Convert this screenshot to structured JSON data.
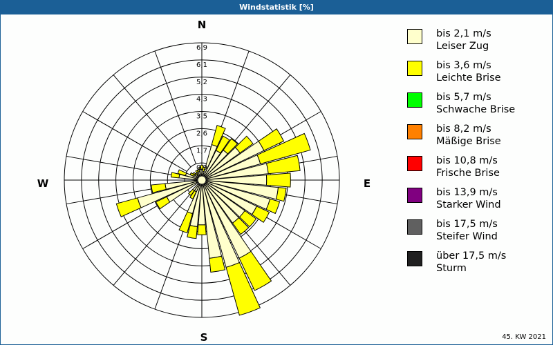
{
  "title": "Windstatistik [%]",
  "footer": "45. KW 2021",
  "directions": {
    "n": "N",
    "e": "E",
    "s": "S",
    "w": "W"
  },
  "legend": [
    {
      "line1": "bis 2,1 m/s",
      "line2": "Leiser Zug",
      "color": "#ffffcc"
    },
    {
      "line1": "bis 3,6 m/s",
      "line2": "Leichte Brise",
      "color": "#ffff00"
    },
    {
      "line1": "bis 5,7 m/s",
      "line2": "Schwache Brise",
      "color": "#00ff00"
    },
    {
      "line1": "bis 8,2 m/s",
      "line2": "Mäßige Brise",
      "color": "#ff8000"
    },
    {
      "line1": "bis 10,8 m/s",
      "line2": "Frische Brise",
      "color": "#ff0000"
    },
    {
      "line1": "bis 13,9 m/s",
      "line2": "Starker Wind",
      "color": "#800080"
    },
    {
      "line1": "bis 17,5 m/s",
      "line2": "Steifer Wind",
      "color": "#606060"
    },
    {
      "line1": "über 17,5 m/s",
      "line2": "Sturm",
      "color": "#202020"
    }
  ],
  "chart_data": {
    "type": "polar-bar",
    "title": "Windstatistik [%]",
    "radial_ticks": [
      "0,9",
      "1,7",
      "2,6",
      "3,5",
      "4,3",
      "5,2",
      "6,1",
      "6,9"
    ],
    "rmax": 6.9,
    "series": [
      {
        "name": "bis 2,1 m/s Leiser Zug",
        "color": "#ffffcc"
      },
      {
        "name": "bis 3,6 m/s Leichte Brise",
        "color": "#ffff00"
      }
    ],
    "sectors": [
      {
        "dir": 0,
        "values": [
          0.3,
          0.2
        ]
      },
      {
        "dir": 10,
        "values": [
          0.2,
          0.2
        ]
      },
      {
        "dir": 20,
        "values": [
          1.6,
          1.0
        ]
      },
      {
        "dir": 30,
        "values": [
          1.4,
          0.8
        ]
      },
      {
        "dir": 40,
        "values": [
          1.6,
          0.7
        ]
      },
      {
        "dir": 50,
        "values": [
          2.1,
          0.8
        ]
      },
      {
        "dir": 60,
        "values": [
          3.2,
          1.1
        ]
      },
      {
        "dir": 70,
        "values": [
          2.8,
          2.6
        ]
      },
      {
        "dir": 80,
        "values": [
          3.1,
          1.6
        ]
      },
      {
        "dir": 90,
        "values": [
          3.0,
          1.2
        ]
      },
      {
        "dir": 100,
        "values": [
          3.6,
          0.4
        ]
      },
      {
        "dir": 110,
        "values": [
          3.3,
          0.5
        ]
      },
      {
        "dir": 120,
        "values": [
          2.8,
          0.7
        ]
      },
      {
        "dir": 130,
        "values": [
          2.4,
          0.7
        ]
      },
      {
        "dir": 140,
        "values": [
          2.4,
          0.7
        ]
      },
      {
        "dir": 150,
        "values": [
          4.1,
          1.8
        ]
      },
      {
        "dir": 160,
        "values": [
          4.3,
          2.5
        ]
      },
      {
        "dir": 170,
        "values": [
          3.7,
          0.7
        ]
      },
      {
        "dir": 180,
        "values": [
          2.0,
          0.5
        ]
      },
      {
        "dir": 190,
        "values": [
          2.1,
          0.6
        ]
      },
      {
        "dir": 200,
        "values": [
          1.5,
          1.0
        ]
      },
      {
        "dir": 210,
        "values": [
          0.4,
          0.4
        ]
      },
      {
        "dir": 220,
        "values": [
          0.4,
          0.3
        ]
      },
      {
        "dir": 230,
        "values": [
          0.0,
          0.0
        ]
      },
      {
        "dir": 240,
        "values": [
          1.7,
          0.6
        ]
      },
      {
        "dir": 250,
        "values": [
          3.1,
          1.1
        ]
      },
      {
        "dir": 260,
        "values": [
          1.6,
          0.7
        ]
      },
      {
        "dir": 270,
        "values": [
          0.0,
          0.0
        ]
      },
      {
        "dir": 280,
        "values": [
          0.9,
          0.4
        ]
      },
      {
        "dir": 290,
        "values": [
          0.6,
          0.4
        ]
      },
      {
        "dir": 300,
        "values": [
          0.2,
          0.2
        ]
      },
      {
        "dir": 310,
        "values": [
          0.2,
          0.1
        ]
      },
      {
        "dir": 320,
        "values": [
          0.1,
          0.1
        ]
      },
      {
        "dir": 330,
        "values": [
          0.2,
          0.1
        ]
      },
      {
        "dir": 340,
        "values": [
          0.2,
          0.1
        ]
      },
      {
        "dir": 350,
        "values": [
          0.3,
          0.1
        ]
      }
    ]
  }
}
